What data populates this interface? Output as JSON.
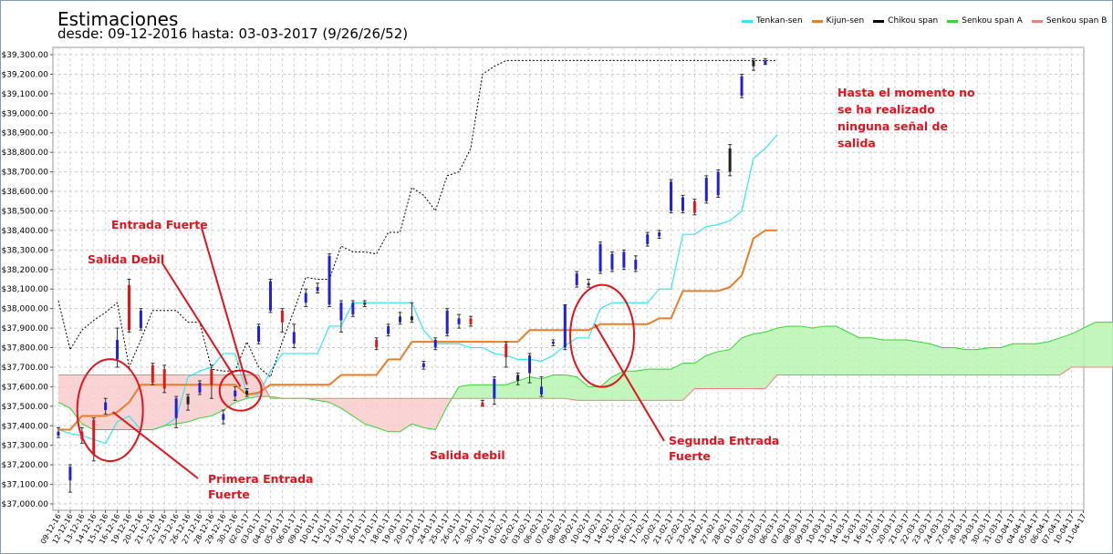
{
  "chart_data": {
    "type": "line",
    "title": "Estimaciones",
    "subtitle": "desde: 09-12-2016 hasta: 03-03-2017 (9/26/26/52)",
    "ylim": [
      37000,
      39300
    ],
    "y_ticks": [
      "$37,000.00",
      "$37,100.00",
      "$37,200.00",
      "$37,300.00",
      "$37,400.00",
      "$37,500.00",
      "$37,600.00",
      "$37,700.00",
      "$37,800.00",
      "$37,900.00",
      "$38,000.00",
      "$38,100.00",
      "$38,200.00",
      "$38,300.00",
      "$38,400.00",
      "$38,500.00",
      "$38,600.00",
      "$38,700.00",
      "$38,800.00",
      "$38,900.00",
      "$39,000.00",
      "$39,100.00",
      "$39,200.00",
      "$39,300.00"
    ],
    "x_labels": [
      "09-12-16",
      "12-12-16",
      "13-12-16",
      "14-12-16",
      "15-12-16",
      "16-12-16",
      "19-12-16",
      "20-12-16",
      "21-12-16",
      "22-12-16",
      "23-12-16",
      "26-12-16",
      "27-12-16",
      "28-12-16",
      "29-12-16",
      "30-12-16",
      "02-01-17",
      "03-01-17",
      "04-01-17",
      "05-01-17",
      "06-01-17",
      "09-01-17",
      "10-01-17",
      "11-01-17",
      "12-01-17",
      "13-01-17",
      "16-01-17",
      "17-01-17",
      "18-01-17",
      "19-01-17",
      "20-01-17",
      "23-01-17",
      "24-01-17",
      "25-01-17",
      "26-01-17",
      "27-01-17",
      "30-01-17",
      "31-01-17",
      "01-02-17",
      "02-02-17",
      "03-02-17",
      "06-02-17",
      "07-02-17",
      "08-02-17",
      "09-02-17",
      "10-02-17",
      "13-02-17",
      "14-02-17",
      "15-02-17",
      "16-02-17",
      "17-02-17",
      "20-02-17",
      "21-02-17",
      "22-02-17",
      "23-02-17",
      "24-02-17",
      "27-02-17",
      "28-02-17",
      "01-03-17",
      "02-03-17",
      "03-03-17",
      "06-03-17",
      "07-03-17",
      "08-03-17",
      "09-03-17",
      "10-03-17",
      "13-03-17",
      "14-03-17",
      "15-03-17",
      "16-03-17",
      "17-03-17",
      "20-03-17",
      "21-03-17",
      "22-03-17",
      "23-03-17",
      "24-03-17",
      "27-03-17",
      "28-03-17",
      "29-03-17",
      "30-03-17",
      "31-03-17",
      "03-04-17",
      "04-04-17",
      "05-04-17",
      "06-04-17",
      "07-04-17",
      "10-04-17",
      "11-04-17"
    ],
    "legend_position": "top-right",
    "grid": true,
    "candles": [
      {
        "o": 37370,
        "c": 37350,
        "h": 37390,
        "l": 37340,
        "col": "blue"
      },
      {
        "o": 37190,
        "c": 37120,
        "h": 37200,
        "l": 37060,
        "col": "blue"
      },
      {
        "o": 37370,
        "c": 37330,
        "h": 37390,
        "l": 37310,
        "col": "red"
      },
      {
        "o": 37430,
        "c": 37250,
        "h": 37440,
        "l": 37220,
        "col": "red"
      },
      {
        "o": 37520,
        "c": 37480,
        "h": 37540,
        "l": 37460,
        "col": "blue"
      },
      {
        "o": 37840,
        "c": 37740,
        "h": 37900,
        "l": 37700,
        "col": "blue"
      },
      {
        "o": 38120,
        "c": 37890,
        "h": 38150,
        "l": 37880,
        "col": "red"
      },
      {
        "o": 37990,
        "c": 37900,
        "h": 38000,
        "l": 37890,
        "col": "blue"
      },
      {
        "o": 37710,
        "c": 37620,
        "h": 37720,
        "l": 37610,
        "col": "red"
      },
      {
        "o": 37690,
        "c": 37590,
        "h": 37710,
        "l": 37570,
        "col": "red"
      },
      {
        "o": 37540,
        "c": 37440,
        "h": 37550,
        "l": 37390,
        "col": "blue"
      },
      {
        "o": 37550,
        "c": 37510,
        "h": 37560,
        "l": 37480,
        "col": "black"
      },
      {
        "o": 37620,
        "c": 37570,
        "h": 37630,
        "l": 37560,
        "col": "blue"
      },
      {
        "o": 37690,
        "c": 37610,
        "h": 37710,
        "l": 37540,
        "col": "red"
      },
      {
        "o": 37460,
        "c": 37430,
        "h": 37480,
        "l": 37410,
        "col": "blue"
      },
      {
        "o": 37580,
        "c": 37550,
        "h": 37600,
        "l": 37530,
        "col": "blue"
      },
      {
        "o": 37580,
        "c": 37560,
        "h": 37590,
        "l": 37550,
        "col": "black"
      },
      {
        "o": 37910,
        "c": 37830,
        "h": 37920,
        "l": 37820,
        "col": "blue"
      },
      {
        "o": 38140,
        "c": 37990,
        "h": 38150,
        "l": 37980,
        "col": "blue"
      },
      {
        "o": 37990,
        "c": 37930,
        "h": 38000,
        "l": 37880,
        "col": "red"
      },
      {
        "o": 37880,
        "c": 37820,
        "h": 37920,
        "l": 37800,
        "col": "blue"
      },
      {
        "o": 38080,
        "c": 38030,
        "h": 38100,
        "l": 38010,
        "col": "blue"
      },
      {
        "o": 38110,
        "c": 38090,
        "h": 38130,
        "l": 38080,
        "col": "blue"
      },
      {
        "o": 38270,
        "c": 38020,
        "h": 38280,
        "l": 38010,
        "col": "blue"
      },
      {
        "o": 38030,
        "c": 37940,
        "h": 38040,
        "l": 37880,
        "col": "blue"
      },
      {
        "o": 38030,
        "c": 37970,
        "h": 38040,
        "l": 37960,
        "col": "blue"
      },
      {
        "o": 38030,
        "c": 38020,
        "h": 38040,
        "l": 38010,
        "col": "black"
      },
      {
        "o": 37840,
        "c": 37800,
        "h": 37850,
        "l": 37790,
        "col": "red"
      },
      {
        "o": 37910,
        "c": 37870,
        "h": 37920,
        "l": 37860,
        "col": "blue"
      },
      {
        "o": 37960,
        "c": 37930,
        "h": 37980,
        "l": 37920,
        "col": "blue"
      },
      {
        "o": 37960,
        "c": 37940,
        "h": 38030,
        "l": 37930,
        "col": "black"
      },
      {
        "o": 37720,
        "c": 37700,
        "h": 37730,
        "l": 37690,
        "col": "blue"
      },
      {
        "o": 37840,
        "c": 37800,
        "h": 37850,
        "l": 37790,
        "col": "blue"
      },
      {
        "o": 37990,
        "c": 37870,
        "h": 38000,
        "l": 37860,
        "col": "blue"
      },
      {
        "o": 37950,
        "c": 37920,
        "h": 37970,
        "l": 37900,
        "col": "blue"
      },
      {
        "o": 37950,
        "c": 37920,
        "h": 37960,
        "l": 37910,
        "col": "red"
      },
      {
        "o": 37520,
        "c": 37500,
        "h": 37530,
        "l": 37500,
        "col": "red"
      },
      {
        "o": 37640,
        "c": 37540,
        "h": 37650,
        "l": 37510,
        "col": "blue"
      },
      {
        "o": 37820,
        "c": 37750,
        "h": 37830,
        "l": 37700,
        "col": "red"
      },
      {
        "o": 37660,
        "c": 37630,
        "h": 37670,
        "l": 37610,
        "col": "black"
      },
      {
        "o": 37760,
        "c": 37670,
        "h": 37770,
        "l": 37620,
        "col": "blue"
      },
      {
        "o": 37600,
        "c": 37560,
        "h": 37650,
        "l": 37550,
        "col": "blue"
      },
      {
        "o": 37830,
        "c": 37820,
        "h": 37840,
        "l": 37810,
        "col": "blue"
      },
      {
        "o": 38020,
        "c": 37800,
        "h": 38020,
        "l": 37790,
        "col": "blue"
      },
      {
        "o": 38180,
        "c": 38120,
        "h": 38190,
        "l": 38110,
        "col": "blue"
      },
      {
        "o": 38130,
        "c": 38120,
        "h": 38150,
        "l": 38110,
        "col": "black"
      },
      {
        "o": 38330,
        "c": 38190,
        "h": 38340,
        "l": 38180,
        "col": "blue"
      },
      {
        "o": 38280,
        "c": 38200,
        "h": 38290,
        "l": 38190,
        "col": "blue"
      },
      {
        "o": 38290,
        "c": 38210,
        "h": 38300,
        "l": 38200,
        "col": "blue"
      },
      {
        "o": 38250,
        "c": 38200,
        "h": 38270,
        "l": 38190,
        "col": "blue"
      },
      {
        "o": 38380,
        "c": 38330,
        "h": 38390,
        "l": 38320,
        "col": "blue"
      },
      {
        "o": 38390,
        "c": 38370,
        "h": 38400,
        "l": 38360,
        "col": "blue"
      },
      {
        "o": 38650,
        "c": 38500,
        "h": 38660,
        "l": 38490,
        "col": "blue"
      },
      {
        "o": 38570,
        "c": 38500,
        "h": 38580,
        "l": 38490,
        "col": "blue"
      },
      {
        "o": 38550,
        "c": 38490,
        "h": 38560,
        "l": 38480,
        "col": "red"
      },
      {
        "o": 38670,
        "c": 38550,
        "h": 38680,
        "l": 38540,
        "col": "blue"
      },
      {
        "o": 38700,
        "c": 38580,
        "h": 38710,
        "l": 38570,
        "col": "blue"
      },
      {
        "o": 38820,
        "c": 38700,
        "h": 38840,
        "l": 38680,
        "col": "black"
      },
      {
        "o": 39190,
        "c": 39090,
        "h": 39200,
        "l": 39080,
        "col": "blue"
      },
      {
        "o": 39270,
        "c": 39240,
        "h": 39280,
        "l": 39220,
        "col": "black"
      },
      {
        "o": 39270,
        "c": 39250,
        "h": 39280,
        "l": 39250,
        "col": "blue"
      }
    ],
    "series": [
      {
        "name": "Tenkan-sen",
        "color": "#35e7f0",
        "values": [
          37380,
          37360,
          37350,
          37330,
          37310,
          37420,
          37450,
          37380,
          37380,
          37400,
          37440,
          37650,
          37680,
          37700,
          37770,
          37770,
          37560,
          37560,
          37680,
          37770,
          37770,
          37770,
          37770,
          37910,
          37910,
          38030,
          38030,
          38030,
          38030,
          38030,
          38030,
          37890,
          37820,
          37820,
          37820,
          37800,
          37800,
          37770,
          37760,
          37740,
          37740,
          37730,
          37760,
          37810,
          37850,
          37850,
          38000,
          38030,
          38030,
          38030,
          38030,
          38100,
          38100,
          38380,
          38380,
          38420,
          38430,
          38450,
          38500,
          38770,
          38820,
          38890
        ]
      },
      {
        "name": "Kijun-sen",
        "color": "#ea7d27",
        "values": [
          37380,
          37380,
          37450,
          37450,
          37450,
          37470,
          37520,
          37610,
          37610,
          37610,
          37610,
          37610,
          37610,
          37610,
          37610,
          37610,
          37560,
          37570,
          37610,
          37610,
          37610,
          37610,
          37610,
          37610,
          37660,
          37660,
          37660,
          37660,
          37740,
          37740,
          37830,
          37830,
          37830,
          37830,
          37830,
          37830,
          37830,
          37830,
          37830,
          37830,
          37890,
          37890,
          37890,
          37890,
          37890,
          37890,
          37920,
          37920,
          37920,
          37920,
          37920,
          37950,
          37950,
          38090,
          38090,
          38090,
          38090,
          38110,
          38170,
          38360,
          38400,
          38400
        ]
      },
      {
        "name": "Chikou span",
        "color": "#000000",
        "values": [
          38040,
          37790,
          37890,
          37940,
          37980,
          38030,
          37700,
          37840,
          37990,
          37990,
          37990,
          37930,
          37930,
          37690,
          37680,
          37680,
          37830,
          37700,
          37650,
          37830,
          37990,
          38160,
          38150,
          38150,
          38320,
          38290,
          38290,
          38280,
          38390,
          38390,
          38620,
          38580,
          38500,
          38680,
          38700,
          38820,
          39200,
          39240,
          39270,
          39270,
          39270,
          39270,
          39270,
          39270,
          39270,
          39270,
          39270,
          39270,
          39270,
          39270,
          39270,
          39270,
          39270,
          39270,
          39270,
          39270,
          39270,
          39270,
          39270,
          39270,
          39270,
          39270
        ]
      },
      {
        "name": "Senkou span A",
        "color": "#33d633",
        "values": [
          37520,
          37490,
          37410,
          37380,
          37380,
          37380,
          37380,
          37380,
          37380,
          37400,
          37410,
          37420,
          37440,
          37450,
          37480,
          37520,
          37540,
          37550,
          37550,
          37540,
          37540,
          37540,
          37530,
          37520,
          37490,
          37450,
          37410,
          37390,
          37370,
          37370,
          37410,
          37390,
          37380,
          37500,
          37600,
          37610,
          37610,
          37610,
          37610,
          37630,
          37650,
          37640,
          37660,
          37660,
          37650,
          37600,
          37600,
          37650,
          37680,
          37680,
          37690,
          37690,
          37690,
          37720,
          37720,
          37760,
          37780,
          37790,
          37850,
          37870,
          37880,
          37900,
          37910,
          37910,
          37900,
          37910,
          37910,
          37880,
          37850,
          37850,
          37840,
          37840,
          37840,
          37830,
          37820,
          37800,
          37800,
          37790,
          37790,
          37800,
          37800,
          37820,
          37820,
          37820,
          37830,
          37850,
          37870,
          37900,
          37930,
          37930,
          37930,
          37930,
          37930,
          38020,
          38020,
          38230,
          38230,
          38250,
          38260,
          38260,
          38260,
          38340,
          38500,
          38560,
          38600,
          38640
        ]
      },
      {
        "name": "Senkou span B",
        "color": "#f08080",
        "values": [
          37660,
          37660,
          37660,
          37660,
          37660,
          37660,
          37660,
          37660,
          37660,
          37660,
          37660,
          37660,
          37660,
          37660,
          37660,
          37660,
          37660,
          37660,
          37540,
          37540,
          37540,
          37540,
          37540,
          37540,
          37540,
          37540,
          37540,
          37540,
          37540,
          37540,
          37540,
          37540,
          37540,
          37540,
          37540,
          37540,
          37540,
          37540,
          37540,
          37540,
          37540,
          37540,
          37540,
          37540,
          37530,
          37530,
          37530,
          37530,
          37530,
          37530,
          37530,
          37530,
          37530,
          37530,
          37590,
          37590,
          37590,
          37590,
          37590,
          37590,
          37590,
          37660,
          37660,
          37660,
          37660,
          37660,
          37660,
          37660,
          37660,
          37660,
          37660,
          37660,
          37660,
          37660,
          37660,
          37660,
          37660,
          37660,
          37660,
          37660,
          37660,
          37660,
          37660,
          37660,
          37660,
          37660,
          37700,
          37700,
          37700,
          37700,
          37700,
          37700,
          37700,
          37730,
          37730,
          37860,
          37930,
          37930,
          37980,
          38030,
          38040,
          38130,
          38260,
          38300,
          38330,
          38330
        ]
      }
    ],
    "annotations": [
      {
        "text": "Entrada Fuerte"
      },
      {
        "text": "Salida Debil"
      },
      {
        "text": "Primera Entrada Fuerte"
      },
      {
        "text": "Salida debil"
      },
      {
        "text": "Segunda Entrada Fuerte"
      },
      {
        "text": "Hasta el momento no se ha realizado ninguna señal de salida"
      }
    ],
    "annotation_color": "#e0141e"
  }
}
